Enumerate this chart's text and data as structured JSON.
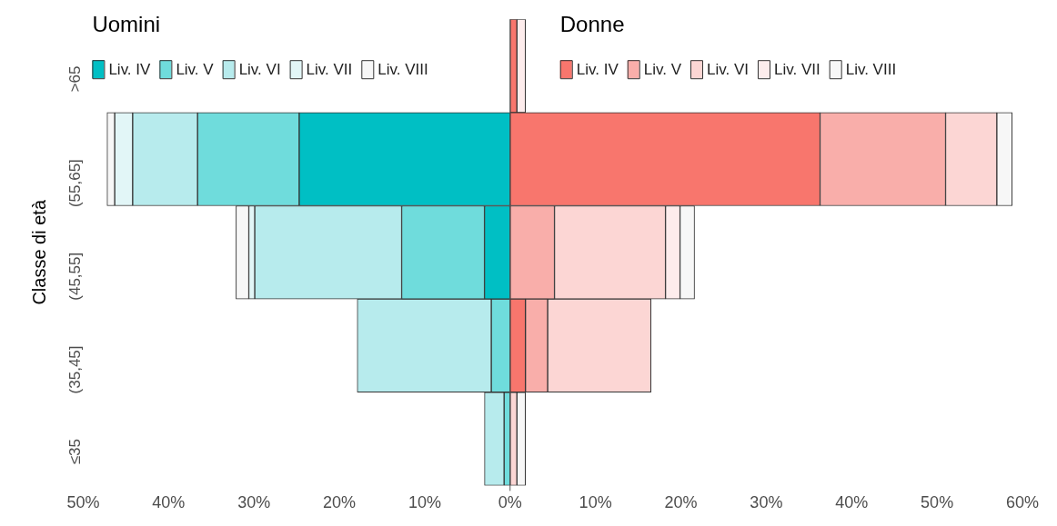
{
  "chart_data": {
    "type": "bar",
    "orientation": "horizontal",
    "stacked": true,
    "ylabel": "Classe di età",
    "annotations": [
      "Uomini",
      "Donne"
    ],
    "categories": [
      ">65",
      "(55,65]",
      "(45,55]",
      "(35,45]",
      "≤35"
    ],
    "series": [
      {
        "name": "Liv. IV",
        "color": "#00bfc4",
        "values": [
          null,
          -24.7,
          -3.0,
          null,
          null
        ]
      },
      {
        "name": "Liv. V",
        "color": "#6fdcdc",
        "values": [
          null,
          -11.9,
          -9.7,
          -2.2,
          -0.7
        ]
      },
      {
        "name": "Liv. VI",
        "color": "#b7ebed",
        "values": [
          null,
          -7.6,
          -17.2,
          -15.7,
          -2.3
        ]
      },
      {
        "name": "Liv. VII",
        "color": "#e2f6f7",
        "values": [
          null,
          -2.1,
          -0.7,
          null,
          null
        ]
      },
      {
        "name": "Liv. VIII",
        "color": "#f7f7f7",
        "values": [
          null,
          -0.9,
          -1.5,
          null,
          null
        ]
      },
      {
        "name": "Liv. IV",
        "color": "#f8766d",
        "values": [
          0.8,
          36.3,
          null,
          1.8,
          null
        ]
      },
      {
        "name": "Liv. V",
        "color": "#f9aeaa",
        "values": [
          null,
          14.7,
          5.2,
          2.6,
          null
        ]
      },
      {
        "name": "Liv. VI",
        "color": "#fcd6d4",
        "values": [
          null,
          6.0,
          13.0,
          12.1,
          0.8
        ]
      },
      {
        "name": "Liv. VII",
        "color": "#fdecec",
        "values": [
          1.0,
          null,
          1.7,
          null,
          null
        ]
      },
      {
        "name": "Liv. VIII",
        "color": "#f7f7f7",
        "values": [
          null,
          1.8,
          1.7,
          null,
          1.0
        ]
      }
    ],
    "xlim": [
      -50,
      60
    ],
    "xticks": [
      {
        "value": -50,
        "label": "50%"
      },
      {
        "value": -40,
        "label": "40%"
      },
      {
        "value": -30,
        "label": "30%"
      },
      {
        "value": -20,
        "label": "20%"
      },
      {
        "value": -10,
        "label": "10%"
      },
      {
        "value": 0,
        "label": "0%"
      },
      {
        "value": 10,
        "label": "10%"
      },
      {
        "value": 20,
        "label": "20%"
      },
      {
        "value": 30,
        "label": "30%"
      },
      {
        "value": 40,
        "label": "40%"
      },
      {
        "value": 50,
        "label": "50%"
      },
      {
        "value": 60,
        "label": "60%"
      }
    ],
    "ref_lines": [
      {
        "axis": "x",
        "value": 0,
        "color": "#555555"
      }
    ],
    "grid": false,
    "legend": "top"
  }
}
